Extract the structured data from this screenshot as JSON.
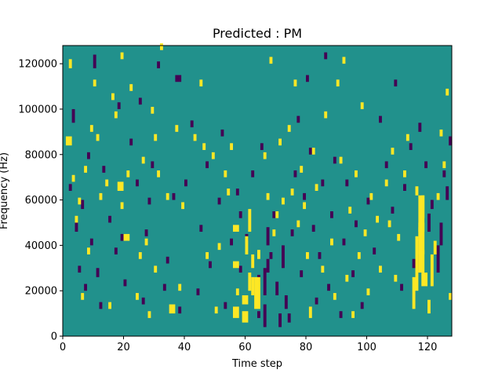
{
  "chart_data": {
    "type": "heatmap",
    "title": "Predicted : PM",
    "xlabel": "Time step",
    "ylabel": "Frequency (Hz)",
    "xlim": [
      0,
      128
    ],
    "ylim": [
      0,
      128000
    ],
    "x_ticks": [
      0,
      20,
      40,
      60,
      80,
      100,
      120
    ],
    "y_ticks": [
      0,
      20000,
      40000,
      60000,
      80000,
      100000,
      120000
    ],
    "x_tick_labels": [
      "0",
      "20",
      "40",
      "60",
      "80",
      "100",
      "120"
    ],
    "y_tick_labels": [
      "0",
      "20000",
      "40000",
      "60000",
      "80000",
      "100000",
      "120000"
    ],
    "grid": false,
    "colors": {
      "background": "#21918c",
      "positive": "#fde725",
      "negative": "#440154"
    },
    "value_levels": {
      "negative": -1,
      "neutral": 0,
      "positive": 1
    },
    "cells": {
      "positive": [
        [
          1,
          84000,
          2,
          4000
        ],
        [
          2,
          118000,
          1,
          4000
        ],
        [
          3,
          68000,
          1,
          3000
        ],
        [
          4,
          50000,
          1,
          3000
        ],
        [
          5,
          58000,
          1,
          3000
        ],
        [
          6,
          16000,
          1,
          3000
        ],
        [
          7,
          72000,
          1,
          3000
        ],
        [
          8,
          36000,
          1,
          3000
        ],
        [
          9,
          90000,
          1,
          3000
        ],
        [
          10,
          110000,
          1,
          3000
        ],
        [
          11,
          86000,
          1,
          3000
        ],
        [
          12,
          60000,
          1,
          3000
        ],
        [
          14,
          66000,
          1,
          3000
        ],
        [
          15,
          12000,
          1,
          3000
        ],
        [
          16,
          104000,
          1,
          3000
        ],
        [
          17,
          96000,
          1,
          3000
        ],
        [
          18,
          64000,
          2,
          4000
        ],
        [
          19,
          122000,
          1,
          3000
        ],
        [
          19,
          56000,
          1,
          3000
        ],
        [
          20,
          42000,
          2,
          3000
        ],
        [
          21,
          70000,
          1,
          3000
        ],
        [
          22,
          108000,
          1,
          3000
        ],
        [
          24,
          16000,
          1,
          3000
        ],
        [
          25,
          34000,
          1,
          3000
        ],
        [
          26,
          76000,
          1,
          3000
        ],
        [
          27,
          40000,
          1,
          3000
        ],
        [
          28,
          8000,
          1,
          3000
        ],
        [
          29,
          98000,
          1,
          3000
        ],
        [
          30,
          86000,
          1,
          3000
        ],
        [
          30,
          28000,
          1,
          3000
        ],
        [
          31,
          70000,
          1,
          3000
        ],
        [
          32,
          126000,
          1,
          3000
        ],
        [
          34,
          60000,
          1,
          3000
        ],
        [
          35,
          10000,
          2,
          4000
        ],
        [
          37,
          90000,
          1,
          3000
        ],
        [
          38,
          20000,
          1,
          3000
        ],
        [
          39,
          56000,
          1,
          3000
        ],
        [
          43,
          86000,
          1,
          3000
        ],
        [
          45,
          110000,
          1,
          3000
        ],
        [
          46,
          82000,
          1,
          3000
        ],
        [
          47,
          34000,
          1,
          3000
        ],
        [
          49,
          78000,
          1,
          3000
        ],
        [
          50,
          10000,
          1,
          3000
        ],
        [
          51,
          38000,
          1,
          3000
        ],
        [
          53,
          70000,
          1,
          3000
        ],
        [
          54,
          62000,
          1,
          3000
        ],
        [
          55,
          82000,
          1,
          3000
        ],
        [
          56,
          46000,
          2,
          3000
        ],
        [
          56,
          30000,
          2,
          3000
        ],
        [
          56,
          8000,
          2,
          5000
        ],
        [
          57,
          18000,
          1,
          3000
        ],
        [
          59,
          14000,
          2,
          4000
        ],
        [
          59,
          6000,
          2,
          5000
        ],
        [
          60,
          36000,
          1,
          8000
        ],
        [
          61,
          46000,
          1,
          10000
        ],
        [
          61,
          20000,
          1,
          8000
        ],
        [
          62,
          18000,
          1,
          8000
        ],
        [
          62,
          30000,
          1,
          6000
        ],
        [
          63,
          12000,
          2,
          14000
        ],
        [
          64,
          34000,
          1,
          4000
        ],
        [
          66,
          78000,
          1,
          3000
        ],
        [
          67,
          60000,
          1,
          3000
        ],
        [
          68,
          120000,
          1,
          3000
        ],
        [
          69,
          44000,
          1,
          3000
        ],
        [
          70,
          52000,
          1,
          3000
        ],
        [
          71,
          84000,
          1,
          3000
        ],
        [
          72,
          58000,
          1,
          3000
        ],
        [
          74,
          90000,
          1,
          3000
        ],
        [
          75,
          62000,
          1,
          3000
        ],
        [
          76,
          110000,
          1,
          3000
        ],
        [
          77,
          48000,
          1,
          3000
        ],
        [
          78,
          72000,
          1,
          3000
        ],
        [
          79,
          56000,
          1,
          3000
        ],
        [
          80,
          34000,
          1,
          3000
        ],
        [
          81,
          8000,
          1,
          5000
        ],
        [
          82,
          80000,
          1,
          3000
        ],
        [
          83,
          64000,
          1,
          3000
        ],
        [
          85,
          28000,
          1,
          3000
        ],
        [
          86,
          96000,
          1,
          3000
        ],
        [
          88,
          40000,
          1,
          3000
        ],
        [
          89,
          16000,
          1,
          3000
        ],
        [
          90,
          110000,
          1,
          3000
        ],
        [
          91,
          76000,
          1,
          3000
        ],
        [
          92,
          120000,
          1,
          3000
        ],
        [
          93,
          24000,
          1,
          3000
        ],
        [
          94,
          54000,
          1,
          3000
        ],
        [
          95,
          8000,
          1,
          3000
        ],
        [
          96,
          70000,
          1,
          3000
        ],
        [
          97,
          34000,
          1,
          3000
        ],
        [
          98,
          100000,
          1,
          3000
        ],
        [
          99,
          44000,
          1,
          3000
        ],
        [
          100,
          18000,
          1,
          3000
        ],
        [
          101,
          60000,
          1,
          3000
        ],
        [
          103,
          50000,
          1,
          3000
        ],
        [
          104,
          28000,
          1,
          3000
        ],
        [
          106,
          66000,
          1,
          3000
        ],
        [
          107,
          48000,
          1,
          3000
        ],
        [
          108,
          80000,
          1,
          3000
        ],
        [
          109,
          24000,
          1,
          3000
        ],
        [
          110,
          42000,
          1,
          3000
        ],
        [
          112,
          70000,
          1,
          3000
        ],
        [
          113,
          86000,
          1,
          3000
        ],
        [
          115,
          12000,
          1,
          14000
        ],
        [
          116,
          20000,
          1,
          24000
        ],
        [
          117,
          36000,
          2,
          14000
        ],
        [
          117,
          28000,
          2,
          10000
        ],
        [
          118,
          22000,
          2,
          6000
        ],
        [
          117,
          42000,
          1,
          6000
        ],
        [
          117,
          46000,
          2,
          16000
        ],
        [
          118,
          52000,
          1,
          10000
        ],
        [
          116,
          62000,
          1,
          4000
        ],
        [
          120,
          10000,
          1,
          6000
        ],
        [
          121,
          22000,
          1,
          14000
        ],
        [
          122,
          36000,
          1,
          6000
        ],
        [
          123,
          60000,
          1,
          3000
        ],
        [
          124,
          88000,
          1,
          3000
        ],
        [
          125,
          74000,
          1,
          3000
        ],
        [
          126,
          106000,
          1,
          3000
        ],
        [
          127,
          16000,
          1,
          3000
        ]
      ],
      "negative": [
        [
          2,
          64000,
          1,
          3000
        ],
        [
          3,
          94000,
          1,
          6000
        ],
        [
          4,
          46000,
          1,
          4000
        ],
        [
          5,
          28000,
          1,
          3000
        ],
        [
          6,
          56000,
          1,
          4000
        ],
        [
          7,
          20000,
          1,
          3000
        ],
        [
          8,
          78000,
          1,
          3000
        ],
        [
          9,
          40000,
          1,
          3000
        ],
        [
          10,
          118000,
          1,
          6000
        ],
        [
          11,
          26000,
          1,
          4000
        ],
        [
          12,
          12000,
          1,
          3000
        ],
        [
          13,
          72000,
          1,
          3000
        ],
        [
          15,
          50000,
          1,
          3000
        ],
        [
          17,
          36000,
          1,
          3000
        ],
        [
          18,
          100000,
          1,
          3000
        ],
        [
          19,
          42000,
          1,
          3000
        ],
        [
          20,
          22000,
          1,
          3000
        ],
        [
          22,
          84000,
          1,
          3000
        ],
        [
          24,
          66000,
          1,
          3000
        ],
        [
          25,
          102000,
          1,
          3000
        ],
        [
          26,
          14000,
          1,
          3000
        ],
        [
          27,
          44000,
          1,
          3000
        ],
        [
          28,
          58000,
          1,
          3000
        ],
        [
          29,
          74000,
          1,
          3000
        ],
        [
          31,
          118000,
          1,
          3000
        ],
        [
          33,
          20000,
          1,
          3000
        ],
        [
          34,
          32000,
          1,
          3000
        ],
        [
          36,
          60000,
          1,
          3000
        ],
        [
          37,
          112000,
          2,
          3000
        ],
        [
          38,
          10000,
          1,
          3000
        ],
        [
          40,
          66000,
          1,
          3000
        ],
        [
          42,
          92000,
          1,
          3000
        ],
        [
          44,
          18000,
          1,
          3000
        ],
        [
          45,
          46000,
          1,
          3000
        ],
        [
          47,
          74000,
          1,
          3000
        ],
        [
          48,
          30000,
          1,
          3000
        ],
        [
          51,
          58000,
          1,
          3000
        ],
        [
          52,
          88000,
          1,
          3000
        ],
        [
          53,
          12000,
          1,
          3000
        ],
        [
          55,
          40000,
          1,
          3000
        ],
        [
          57,
          62000,
          1,
          3000
        ],
        [
          58,
          52000,
          1,
          3000
        ],
        [
          58,
          28000,
          1,
          3000
        ],
        [
          60,
          42000,
          1,
          3000
        ],
        [
          62,
          70000,
          1,
          3000
        ],
        [
          64,
          24000,
          1,
          3000
        ],
        [
          64,
          8000,
          1,
          3000
        ],
        [
          65,
          82000,
          1,
          3000
        ],
        [
          66,
          4000,
          1,
          10000
        ],
        [
          66,
          18000,
          1,
          12000
        ],
        [
          67,
          28000,
          1,
          6000
        ],
        [
          67,
          40000,
          1,
          8000
        ],
        [
          68,
          34000,
          1,
          3000
        ],
        [
          69,
          52000,
          1,
          3000
        ],
        [
          70,
          18000,
          1,
          6000
        ],
        [
          71,
          4000,
          1,
          6000
        ],
        [
          72,
          30000,
          1,
          10000
        ],
        [
          73,
          12000,
          1,
          6000
        ],
        [
          74,
          6000,
          1,
          4000
        ],
        [
          75,
          44000,
          1,
          3000
        ],
        [
          76,
          70000,
          1,
          3000
        ],
        [
          77,
          94000,
          1,
          3000
        ],
        [
          78,
          26000,
          1,
          3000
        ],
        [
          79,
          60000,
          1,
          3000
        ],
        [
          80,
          112000,
          1,
          3000
        ],
        [
          81,
          80000,
          1,
          3000
        ],
        [
          82,
          46000,
          1,
          3000
        ],
        [
          83,
          14000,
          1,
          3000
        ],
        [
          84,
          34000,
          1,
          3000
        ],
        [
          85,
          66000,
          1,
          3000
        ],
        [
          86,
          122000,
          1,
          3000
        ],
        [
          87,
          20000,
          1,
          3000
        ],
        [
          88,
          52000,
          1,
          3000
        ],
        [
          89,
          76000,
          1,
          3000
        ],
        [
          91,
          8000,
          1,
          3000
        ],
        [
          92,
          40000,
          1,
          3000
        ],
        [
          93,
          66000,
          1,
          3000
        ],
        [
          95,
          26000,
          1,
          3000
        ],
        [
          96,
          48000,
          1,
          3000
        ],
        [
          98,
          12000,
          1,
          3000
        ],
        [
          100,
          58000,
          1,
          3000
        ],
        [
          102,
          36000,
          1,
          3000
        ],
        [
          104,
          94000,
          1,
          3000
        ],
        [
          106,
          74000,
          1,
          3000
        ],
        [
          108,
          54000,
          1,
          3000
        ],
        [
          109,
          110000,
          1,
          3000
        ],
        [
          111,
          20000,
          1,
          3000
        ],
        [
          112,
          64000,
          1,
          3000
        ],
        [
          114,
          82000,
          1,
          3000
        ],
        [
          115,
          30000,
          1,
          4000
        ],
        [
          117,
          90000,
          1,
          4000
        ],
        [
          119,
          74000,
          1,
          3000
        ],
        [
          120,
          46000,
          1,
          8000
        ],
        [
          121,
          56000,
          1,
          4000
        ],
        [
          123,
          28000,
          1,
          12000
        ],
        [
          124,
          40000,
          1,
          10000
        ],
        [
          125,
          70000,
          1,
          3000
        ],
        [
          126,
          60000,
          1,
          6000
        ],
        [
          127,
          84000,
          1,
          4000
        ]
      ]
    }
  }
}
